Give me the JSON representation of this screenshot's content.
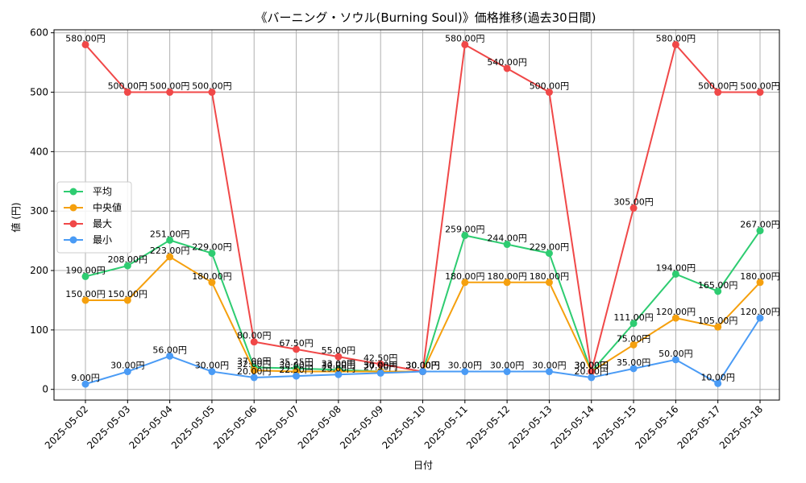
{
  "chart_data": {
    "type": "line",
    "title": "《バーニング・ソウル(Burning Soul)》価格推移(過去30日間)",
    "xlabel": "日付",
    "ylabel": "値 (円)",
    "ylim": [
      -18,
      605
    ],
    "yticks": [
      0,
      100,
      200,
      300,
      400,
      500,
      600
    ],
    "grid": true,
    "legend_position": "center-left",
    "value_suffix": "円",
    "categories": [
      "2025-05-02",
      "2025-05-03",
      "2025-05-04",
      "2025-05-05",
      "2025-05-06",
      "2025-05-07",
      "2025-05-08",
      "2025-05-09",
      "2025-05-10",
      "2025-05-11",
      "2025-05-12",
      "2025-05-13",
      "2025-05-14",
      "2025-05-15",
      "2025-05-16",
      "2025-05-17",
      "2025-05-18"
    ],
    "series": [
      {
        "name": "平均",
        "color": "#2ecc71",
        "values": [
          190,
          208,
          251,
          229,
          37,
          35.25,
          33,
          30,
          30,
          259,
          244,
          229,
          30,
          111,
          194,
          165,
          267
        ]
      },
      {
        "name": "中央値",
        "color": "#f5a00e",
        "values": [
          150,
          150,
          223,
          180,
          32,
          30,
          30,
          30,
          30,
          180,
          180,
          180,
          30,
          75,
          120,
          105,
          180
        ]
      },
      {
        "name": "最大",
        "color": "#f04848",
        "values": [
          580,
          500,
          500,
          500,
          80,
          67.5,
          55,
          42.5,
          30,
          580,
          540,
          500,
          30,
          305,
          580,
          500,
          500
        ]
      },
      {
        "name": "最小",
        "color": "#4a9bf5",
        "values": [
          9,
          30,
          56,
          30,
          20,
          22.5,
          25,
          27.5,
          30,
          30,
          30,
          30,
          20,
          35,
          50,
          10,
          120
        ]
      }
    ]
  }
}
